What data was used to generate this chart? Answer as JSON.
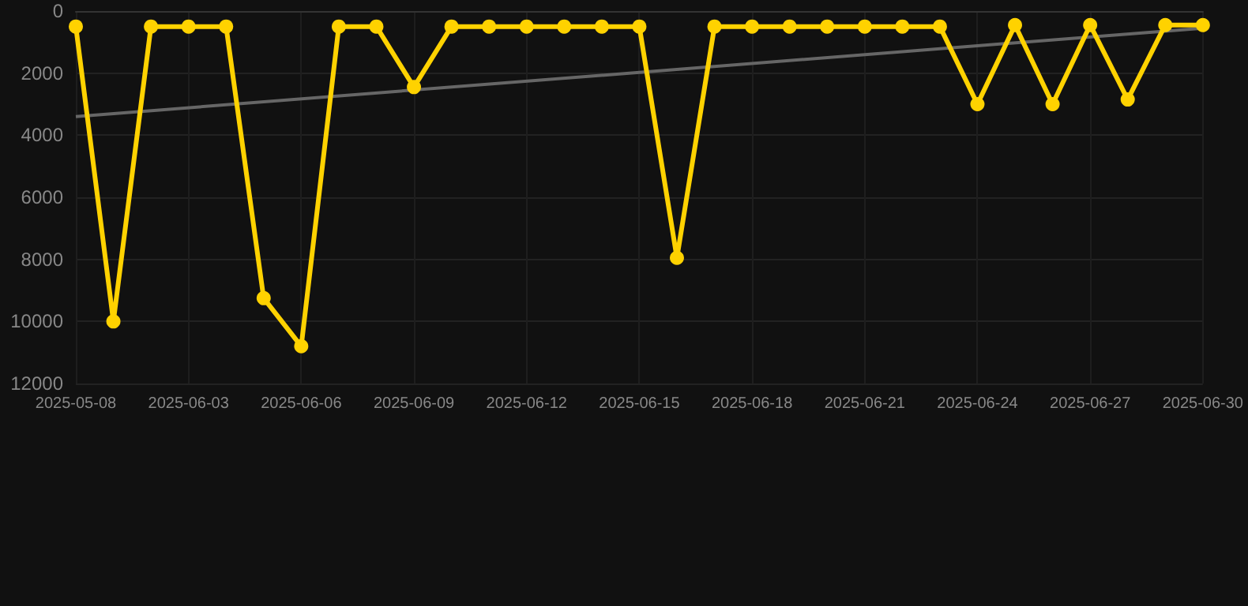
{
  "chart_data": {
    "type": "line",
    "categories": [
      "2025-05-08",
      null,
      null,
      "2025-06-03",
      null,
      null,
      "2025-06-06",
      null,
      null,
      "2025-06-09",
      null,
      null,
      "2025-06-12",
      null,
      null,
      "2025-06-15",
      null,
      null,
      "2025-06-18",
      null,
      null,
      "2025-06-21",
      null,
      null,
      "2025-06-24",
      null,
      null,
      "2025-06-27",
      null,
      null,
      "2025-06-30"
    ],
    "series": [
      {
        "color": "#ffd200",
        "values": [
          500,
          10000,
          500,
          500,
          500,
          9250,
          10800,
          500,
          500,
          2450,
          500,
          500,
          500,
          500,
          500,
          500,
          7950,
          500,
          500,
          500,
          500,
          500,
          500,
          500,
          3000,
          450,
          3000,
          450,
          2850,
          450,
          450
        ]
      },
      {
        "type": "line",
        "color": "#666666",
        "values": [
          3400,
          null,
          null,
          null,
          null,
          null,
          null,
          null,
          null,
          null,
          null,
          null,
          null,
          null,
          null,
          null,
          null,
          null,
          null,
          null,
          null,
          null,
          null,
          null,
          null,
          null,
          null,
          null,
          null,
          null,
          550
        ],
        "marker": "none"
      }
    ],
    "ylim": [
      12000,
      0
    ],
    "yticks": [
      0,
      2000,
      4000,
      6000,
      8000,
      10000,
      12000
    ],
    "grid": true,
    "marker": "circle",
    "line_style": "solid"
  }
}
